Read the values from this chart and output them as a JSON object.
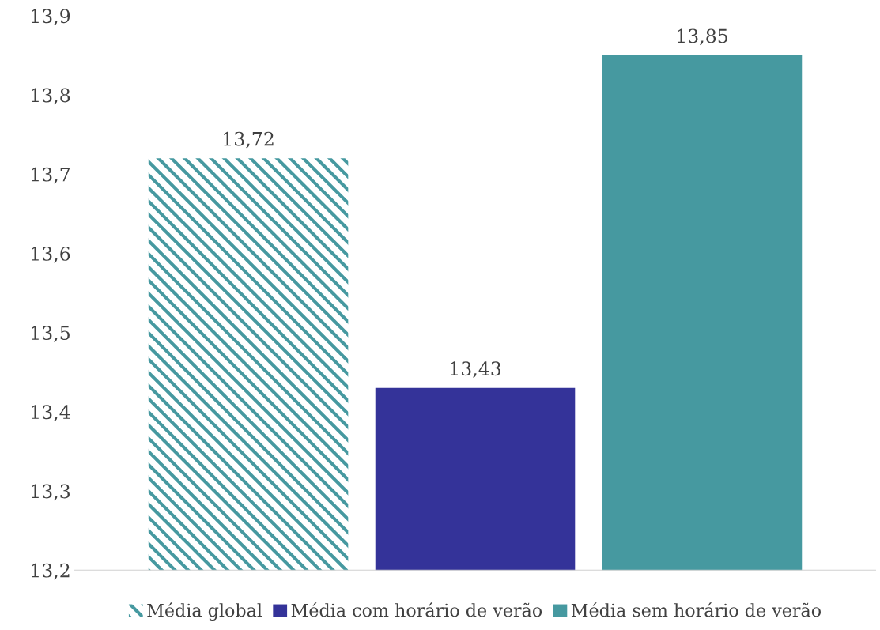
{
  "chart_data": {
    "type": "bar",
    "categories": [
      null
    ],
    "series": [
      {
        "name": "Média global",
        "color": "#4699a0",
        "values": [
          13.72
        ],
        "value_labels": [
          "13,72"
        ]
      },
      {
        "name": "Média com horário de verão",
        "color": "#343399",
        "values": [
          13.43
        ],
        "value_labels": [
          "13,43"
        ]
      },
      {
        "name": "Média sem horário de verão",
        "color": "#4699a0",
        "values": [
          13.85
        ],
        "value_labels": [
          "13,85"
        ]
      }
    ],
    "ylim": [
      13.2,
      13.9
    ],
    "yticks": [
      {
        "value": 13.2,
        "label": "13,2"
      },
      {
        "value": 13.3,
        "label": "13,3"
      },
      {
        "value": 13.4,
        "label": "13,4"
      },
      {
        "value": 13.5,
        "label": "13,5"
      },
      {
        "value": 13.6,
        "label": "13,6"
      },
      {
        "value": 13.7,
        "label": "13,7"
      },
      {
        "value": 13.8,
        "label": "13,8"
      },
      {
        "value": 13.9,
        "label": "13,9"
      }
    ],
    "grid": false,
    "legend": "bottom"
  }
}
